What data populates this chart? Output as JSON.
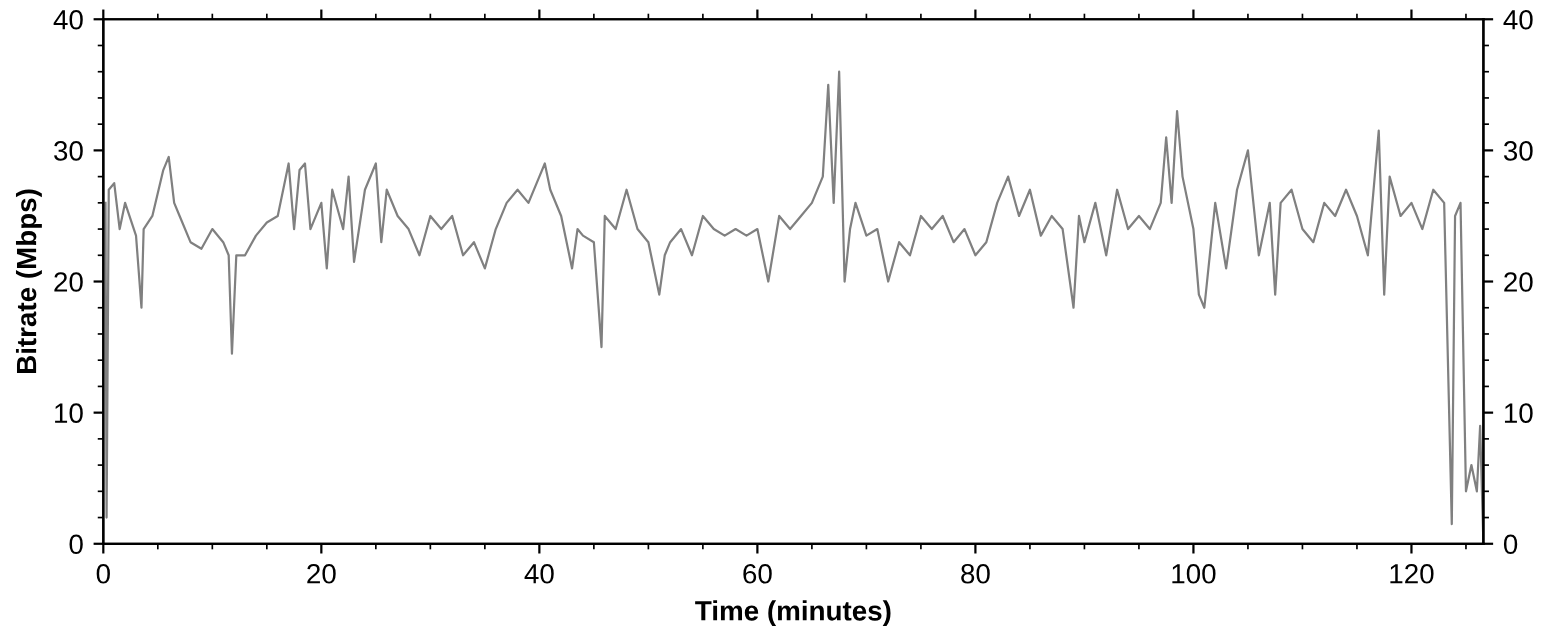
{
  "chart_data": {
    "type": "line",
    "xlabel": "Time (minutes)",
    "ylabel": "Bitrate (Mbps)",
    "xlim": [
      0,
      126.6
    ],
    "xticks": [
      0,
      20,
      40,
      60,
      80,
      100,
      120
    ],
    "ylim": [
      0,
      40
    ],
    "yticks": [
      0,
      10,
      20,
      30,
      40
    ],
    "y2lim": [
      0,
      40
    ],
    "y2ticks": [
      0,
      10,
      20,
      30,
      40
    ],
    "grid": false,
    "legend": false,
    "marker": "none",
    "line_style": "solid",
    "series": [
      {
        "color": "#808080",
        "x": [
          0.2,
          0.3,
          0.5,
          1,
          1.5,
          2,
          3,
          3.5,
          3.7,
          4.5,
          5.5,
          6,
          6.5,
          7,
          8,
          9,
          10,
          11,
          11.5,
          11.8,
          12.2,
          13,
          14,
          15,
          16,
          17,
          17.5,
          18,
          18.5,
          19,
          20,
          20.5,
          21,
          22,
          22.5,
          23,
          24,
          25,
          25.5,
          26,
          27,
          28,
          29,
          30,
          31,
          32,
          33,
          34,
          35,
          36,
          37,
          38,
          39,
          40,
          40.5,
          41,
          42,
          43,
          43.5,
          44,
          45,
          45.7,
          46,
          47,
          48,
          49,
          50,
          51,
          51.5,
          52,
          53,
          54,
          55,
          56,
          57,
          58,
          59,
          60,
          61,
          62,
          63,
          64,
          65,
          66,
          66.5,
          67,
          67.5,
          68,
          68.5,
          69,
          70,
          71,
          72,
          73,
          74,
          75,
          76,
          77,
          78,
          79,
          80,
          81,
          82,
          83,
          84,
          85,
          86,
          87,
          88,
          89,
          89.5,
          90,
          91,
          92,
          93,
          94,
          95,
          96,
          97,
          97.5,
          98,
          98.5,
          99,
          100,
          100.5,
          101,
          102,
          103,
          104,
          105,
          106,
          107,
          107.5,
          108,
          109,
          110,
          111,
          112,
          113,
          114,
          115,
          116,
          117,
          117.5,
          118,
          119,
          120,
          121,
          122,
          123,
          123.7,
          124,
          124.5,
          125,
          125.5,
          126,
          126.3,
          126.6
        ],
        "values": [
          26,
          2,
          27,
          27.5,
          24,
          26,
          23.5,
          18,
          24,
          25,
          28.5,
          29.5,
          26,
          25,
          23,
          22.5,
          24,
          23,
          22,
          14.5,
          22,
          22,
          23.5,
          24.5,
          25,
          29,
          24,
          28.5,
          29,
          24,
          26,
          21,
          27,
          24,
          28,
          21.5,
          27,
          29,
          23,
          27,
          25,
          24,
          22,
          25,
          24,
          25,
          22,
          23,
          21,
          24,
          26,
          27,
          26,
          28,
          29,
          27,
          25,
          21,
          24,
          23.5,
          23,
          15,
          25,
          24,
          27,
          24,
          23,
          19,
          22,
          23,
          24,
          22,
          25,
          24,
          23.5,
          24,
          23.5,
          24,
          20,
          25,
          24,
          25,
          26,
          28,
          35,
          26,
          36,
          20,
          24,
          26,
          23.5,
          24,
          20,
          23,
          22,
          25,
          24,
          25,
          23,
          24,
          22,
          23,
          26,
          28,
          25,
          27,
          23.5,
          25,
          24,
          18,
          25,
          23,
          26,
          22,
          27,
          24,
          25,
          24,
          26,
          31,
          26,
          33,
          28,
          24,
          19,
          18,
          26,
          21,
          27,
          30,
          22,
          26,
          19,
          26,
          27,
          24,
          23,
          26,
          25,
          27,
          25,
          22,
          31.5,
          19,
          28,
          25,
          26,
          24,
          27,
          26,
          1.5,
          25,
          26,
          4,
          6,
          4,
          9,
          0
        ]
      }
    ]
  }
}
